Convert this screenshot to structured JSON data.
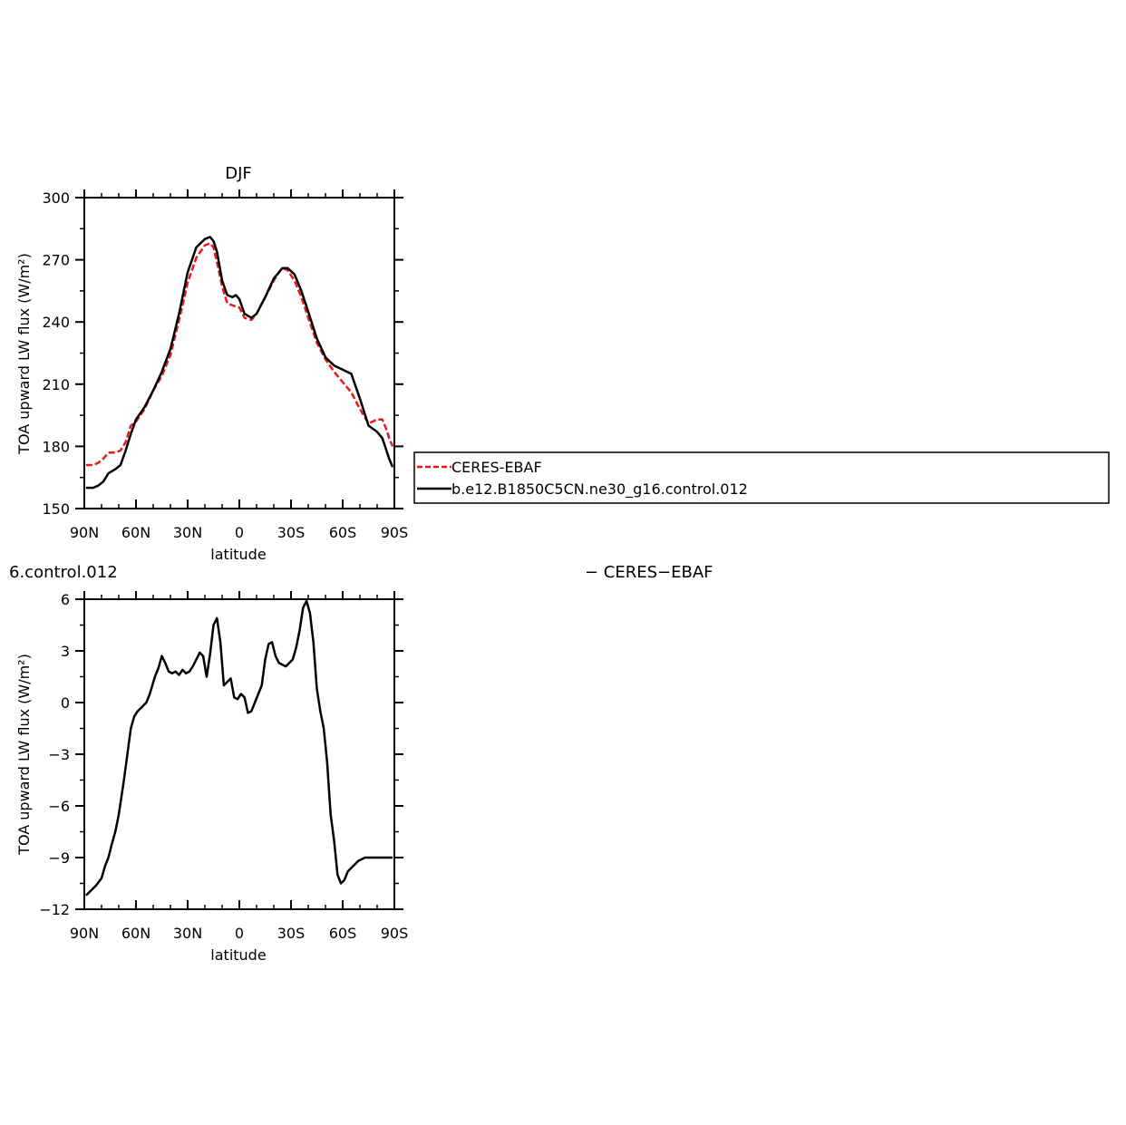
{
  "chart_data": [
    {
      "type": "line",
      "title": "DJF",
      "xlabel": "latitude",
      "ylabel": "TOA upward LW flux (W/m²)",
      "xlim": [
        90,
        -90
      ],
      "ylim": [
        150,
        300
      ],
      "xticks": [
        90,
        60,
        30,
        0,
        -30,
        -60,
        -90
      ],
      "xtick_labels": [
        "90N",
        "60N",
        "30N",
        "0",
        "30S",
        "60S",
        "90S"
      ],
      "yticks": [
        150,
        180,
        210,
        240,
        270,
        300
      ],
      "ytick_labels": [
        "150",
        "180",
        "210",
        "240",
        "270",
        "300"
      ],
      "series": [
        {
          "name": "CERES-EBAF",
          "color": "#e8191a",
          "dash": "dashed",
          "x": [
            89,
            85,
            82,
            79,
            76,
            72,
            69,
            66,
            63,
            60,
            55,
            50,
            45,
            40,
            35,
            30,
            25,
            20,
            17,
            15,
            13,
            10,
            7,
            4,
            0,
            -3,
            -7,
            -10,
            -15,
            -20,
            -23,
            -25,
            -28,
            -32,
            -36,
            -40,
            -45,
            -50,
            -55,
            -60,
            -65,
            -70,
            -75,
            -80,
            -83,
            -85,
            -87,
            -89
          ],
          "y": [
            171,
            171,
            172,
            174,
            177,
            177,
            178,
            182,
            190,
            192,
            198,
            207,
            214,
            224,
            241,
            259,
            271,
            277,
            278,
            276,
            269,
            257,
            249,
            248,
            247,
            242,
            241,
            244,
            252,
            260,
            264,
            266,
            265,
            260,
            252,
            242,
            230,
            222,
            216,
            211,
            206,
            198,
            191,
            193,
            193,
            189,
            184,
            180
          ]
        },
        {
          "name": "b.e12.B1850C5CN.ne30_g16.control.012",
          "color": "#000000",
          "dash": "solid",
          "x": [
            89,
            85,
            82,
            79,
            76,
            72,
            69,
            66,
            63,
            60,
            55,
            50,
            45,
            40,
            35,
            30,
            25,
            20,
            17,
            15,
            13,
            10,
            7,
            4,
            2,
            0,
            -3,
            -7,
            -10,
            -15,
            -20,
            -23,
            -25,
            -28,
            -32,
            -36,
            -40,
            -45,
            -50,
            -55,
            -60,
            -65,
            -70,
            -75,
            -80,
            -83,
            -85,
            -87,
            -89
          ],
          "y": [
            160,
            160,
            161,
            163,
            167,
            169,
            171,
            178,
            186,
            193,
            199,
            207,
            216,
            227,
            244,
            264,
            276,
            280,
            281,
            279,
            274,
            260,
            253,
            252,
            253,
            251,
            244,
            242,
            244,
            252,
            261,
            264,
            266,
            266,
            263,
            255,
            245,
            232,
            223,
            219,
            217,
            215,
            203,
            190,
            187,
            184,
            179,
            174,
            170
          ]
        }
      ],
      "legend": "right"
    },
    {
      "type": "line",
      "title": "6.control.012",
      "title_right": "− CERES−EBAF",
      "xlabel": "latitude",
      "ylabel": "TOA upward LW flux (W/m²)",
      "xlim": [
        90,
        -90
      ],
      "ylim": [
        -12,
        6
      ],
      "xticks": [
        90,
        60,
        30,
        0,
        -30,
        -60,
        -90
      ],
      "xtick_labels": [
        "90N",
        "60N",
        "30N",
        "0",
        "30S",
        "60S",
        "90S"
      ],
      "yticks": [
        -12,
        -9,
        -6,
        -3,
        0,
        3,
        6
      ],
      "ytick_labels": [
        "−12",
        "−9",
        "−6",
        "−3",
        "0",
        "3",
        "6"
      ],
      "series": [
        {
          "color": "#000000",
          "dash": "solid",
          "x": [
            89,
            87,
            85,
            83,
            80,
            78,
            76,
            74,
            72,
            70,
            67,
            65,
            63,
            61,
            59,
            57,
            54,
            52,
            49,
            47,
            45,
            43,
            41,
            39,
            37,
            35,
            33,
            31,
            29,
            27,
            25,
            23,
            21,
            19,
            17,
            15,
            13,
            11,
            9,
            7,
            5,
            3,
            1,
            -1,
            -3,
            -5,
            -7,
            -9,
            -11,
            -13,
            -15,
            -17,
            -19,
            -21,
            -23,
            -25,
            -27,
            -29,
            -31,
            -33,
            -35,
            -37,
            -39,
            -41,
            -43,
            -45,
            -47,
            -49,
            -51,
            -53,
            -55,
            -57,
            -59,
            -61,
            -63,
            -65,
            -67,
            -69,
            -71,
            -73,
            -75,
            -77,
            -79,
            -81,
            -83,
            -84,
            -85,
            -86,
            -87,
            -88,
            -89
          ],
          "y": [
            -11.2,
            -11.0,
            -10.8,
            -10.6,
            -10.2,
            -9.5,
            -9.0,
            -8.2,
            -7.5,
            -6.5,
            -4.5,
            -3.0,
            -1.5,
            -0.8,
            -0.5,
            -0.3,
            0.0,
            0.5,
            1.5,
            2.0,
            2.7,
            2.3,
            1.8,
            1.7,
            1.8,
            1.6,
            1.9,
            1.7,
            1.8,
            2.1,
            2.5,
            2.9,
            2.7,
            1.5,
            2.8,
            4.5,
            4.9,
            3.5,
            1.0,
            1.2,
            1.4,
            0.3,
            0.2,
            0.5,
            0.3,
            -0.6,
            -0.5,
            0.0,
            0.5,
            1.0,
            2.5,
            3.4,
            3.5,
            2.7,
            2.3,
            2.2,
            2.1,
            2.3,
            2.5,
            3.2,
            4.2,
            5.5,
            5.9,
            5.2,
            3.5,
            0.8,
            -0.5,
            -1.5,
            -3.5,
            -6.5,
            -8.0,
            -10.0,
            -10.5,
            -10.3,
            -9.8,
            -9.6,
            -9.4,
            -9.2,
            -9.1,
            -9.0,
            -9.0,
            -9.0,
            -9.0,
            -9.0,
            -9.0,
            -9.0,
            -9.0,
            -9.0,
            -9.0,
            -9.0,
            -9.0
          ]
        }
      ]
    }
  ]
}
